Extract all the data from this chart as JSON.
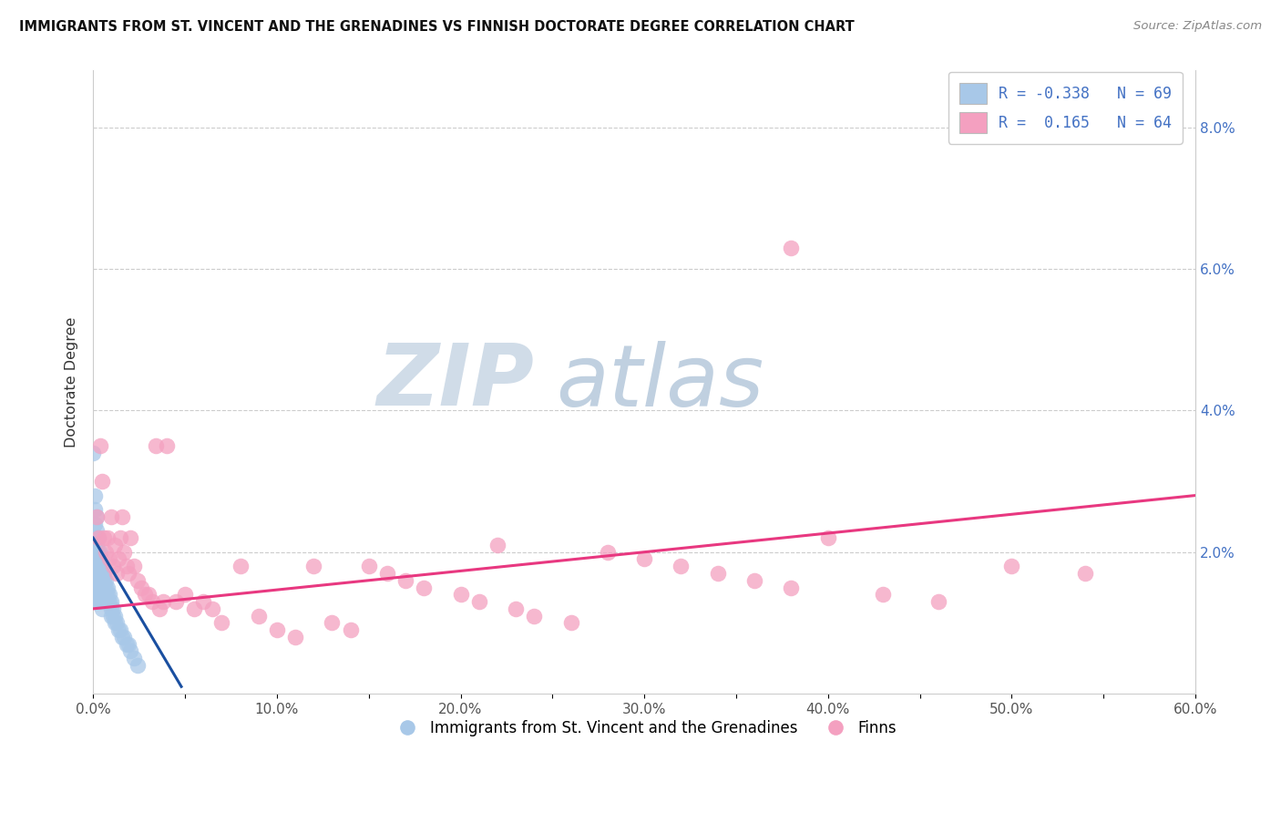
{
  "title": "IMMIGRANTS FROM ST. VINCENT AND THE GRENADINES VS FINNISH DOCTORATE DEGREE CORRELATION CHART",
  "source": "Source: ZipAtlas.com",
  "ylabel": "Doctorate Degree",
  "xlim": [
    0.0,
    0.6
  ],
  "ylim": [
    0.0,
    0.088
  ],
  "xtick_labels": [
    "0.0%",
    "",
    "10.0%",
    "",
    "20.0%",
    "",
    "30.0%",
    "",
    "40.0%",
    "",
    "50.0%",
    "",
    "60.0%"
  ],
  "xtick_vals": [
    0.0,
    0.05,
    0.1,
    0.15,
    0.2,
    0.25,
    0.3,
    0.35,
    0.4,
    0.45,
    0.5,
    0.55,
    0.6
  ],
  "ytick_vals_right": [
    0.02,
    0.04,
    0.06,
    0.08
  ],
  "ytick_labels_right": [
    "2.0%",
    "4.0%",
    "6.0%",
    "8.0%"
  ],
  "blue_color": "#a8c8e8",
  "pink_color": "#f4a0c0",
  "blue_line_color": "#1a4fa0",
  "pink_line_color": "#e83880",
  "legend_R1": "-0.338",
  "legend_N1": "69",
  "legend_R2": "0.165",
  "legend_N2": "64",
  "series1_label": "Immigrants from St. Vincent and the Grenadines",
  "series2_label": "Finns",
  "blue_scatter_x": [
    0.0,
    0.001,
    0.001,
    0.001,
    0.001,
    0.001,
    0.002,
    0.002,
    0.002,
    0.002,
    0.002,
    0.002,
    0.003,
    0.003,
    0.003,
    0.003,
    0.003,
    0.003,
    0.003,
    0.004,
    0.004,
    0.004,
    0.004,
    0.004,
    0.004,
    0.005,
    0.005,
    0.005,
    0.005,
    0.005,
    0.006,
    0.006,
    0.006,
    0.006,
    0.007,
    0.007,
    0.007,
    0.007,
    0.008,
    0.008,
    0.008,
    0.009,
    0.009,
    0.01,
    0.01,
    0.01,
    0.011,
    0.011,
    0.012,
    0.012,
    0.013,
    0.014,
    0.015,
    0.016,
    0.017,
    0.018,
    0.019,
    0.02,
    0.022,
    0.024,
    0.001,
    0.001,
    0.001,
    0.002,
    0.002,
    0.003,
    0.003,
    0.004,
    0.005
  ],
  "blue_scatter_y": [
    0.034,
    0.028,
    0.026,
    0.024,
    0.022,
    0.02,
    0.025,
    0.023,
    0.021,
    0.019,
    0.018,
    0.017,
    0.022,
    0.02,
    0.018,
    0.017,
    0.016,
    0.015,
    0.014,
    0.02,
    0.018,
    0.017,
    0.016,
    0.015,
    0.014,
    0.018,
    0.017,
    0.016,
    0.015,
    0.014,
    0.017,
    0.016,
    0.015,
    0.014,
    0.016,
    0.015,
    0.014,
    0.013,
    0.015,
    0.014,
    0.013,
    0.014,
    0.013,
    0.013,
    0.012,
    0.011,
    0.012,
    0.011,
    0.011,
    0.01,
    0.01,
    0.009,
    0.009,
    0.008,
    0.008,
    0.007,
    0.007,
    0.006,
    0.005,
    0.004,
    0.017,
    0.015,
    0.013,
    0.016,
    0.014,
    0.015,
    0.013,
    0.013,
    0.012
  ],
  "pink_scatter_x": [
    0.002,
    0.003,
    0.004,
    0.005,
    0.006,
    0.007,
    0.008,
    0.009,
    0.01,
    0.011,
    0.012,
    0.013,
    0.014,
    0.015,
    0.016,
    0.017,
    0.018,
    0.019,
    0.02,
    0.022,
    0.024,
    0.026,
    0.028,
    0.03,
    0.032,
    0.034,
    0.036,
    0.038,
    0.04,
    0.045,
    0.05,
    0.055,
    0.06,
    0.065,
    0.07,
    0.08,
    0.09,
    0.1,
    0.11,
    0.12,
    0.13,
    0.14,
    0.15,
    0.16,
    0.17,
    0.18,
    0.2,
    0.21,
    0.22,
    0.23,
    0.24,
    0.26,
    0.28,
    0.3,
    0.32,
    0.34,
    0.36,
    0.38,
    0.4,
    0.43,
    0.46,
    0.5,
    0.54,
    0.38
  ],
  "pink_scatter_y": [
    0.025,
    0.022,
    0.035,
    0.03,
    0.022,
    0.02,
    0.022,
    0.019,
    0.025,
    0.018,
    0.021,
    0.017,
    0.019,
    0.022,
    0.025,
    0.02,
    0.018,
    0.017,
    0.022,
    0.018,
    0.016,
    0.015,
    0.014,
    0.014,
    0.013,
    0.035,
    0.012,
    0.013,
    0.035,
    0.013,
    0.014,
    0.012,
    0.013,
    0.012,
    0.01,
    0.018,
    0.011,
    0.009,
    0.008,
    0.018,
    0.01,
    0.009,
    0.018,
    0.017,
    0.016,
    0.015,
    0.014,
    0.013,
    0.021,
    0.012,
    0.011,
    0.01,
    0.02,
    0.019,
    0.018,
    0.017,
    0.016,
    0.015,
    0.022,
    0.014,
    0.013,
    0.018,
    0.017,
    0.063
  ],
  "blue_line_x": [
    0.0,
    0.048
  ],
  "blue_line_y": [
    0.022,
    0.001
  ],
  "pink_line_x": [
    0.0,
    0.6
  ],
  "pink_line_y": [
    0.012,
    0.028
  ]
}
